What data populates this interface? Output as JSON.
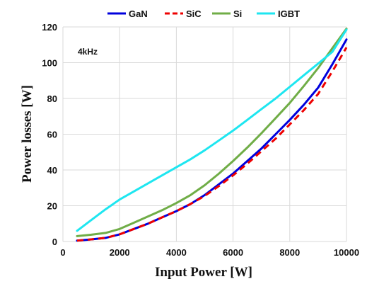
{
  "chart_data": {
    "type": "line",
    "title": "",
    "xlabel": "Input Power [W]",
    "ylabel": "Power losses [W]",
    "xlim": [
      0,
      10000
    ],
    "ylim": [
      0,
      120
    ],
    "x_ticks": [
      "0",
      "2000",
      "4000",
      "6000",
      "8000",
      "10000"
    ],
    "y_ticks": [
      "0",
      "20",
      "40",
      "60",
      "80",
      "100",
      "120"
    ],
    "grid": true,
    "legend_position": "top",
    "annotation": "4kHz",
    "series": [
      {
        "name": "GaN",
        "color": "#0000dd",
        "dash": "solid",
        "x": [
          500,
          1000,
          1500,
          2000,
          2500,
          3000,
          3500,
          4000,
          4500,
          5000,
          5500,
          6000,
          6500,
          7000,
          7500,
          8000,
          8500,
          9000,
          9500,
          10000
        ],
        "y": [
          0.5,
          1.2,
          2,
          4,
          7,
          10,
          13.5,
          17,
          21,
          26,
          32,
          38,
          45,
          52,
          60,
          68,
          76.5,
          86,
          99,
          113
        ]
      },
      {
        "name": "SiC",
        "color": "#ee0000",
        "dash": "dashed",
        "x": [
          500,
          1000,
          1500,
          2000,
          2500,
          3000,
          3500,
          4000,
          4500,
          5000,
          5500,
          6000,
          6500,
          7000,
          7500,
          8000,
          8500,
          9000,
          9500,
          10000
        ],
        "y": [
          0.5,
          1.2,
          2,
          4,
          7,
          10,
          13.5,
          17,
          21,
          25.5,
          31,
          37,
          43.5,
          50.5,
          57.5,
          65.5,
          73.5,
          82.5,
          95,
          108.5
        ]
      },
      {
        "name": "Si",
        "color": "#70ad47",
        "dash": "solid",
        "x": [
          500,
          1000,
          1500,
          2000,
          2500,
          3000,
          3500,
          4000,
          4500,
          5000,
          5500,
          6000,
          6500,
          7000,
          7500,
          8000,
          8500,
          9000,
          9500,
          10000
        ],
        "y": [
          3,
          3.8,
          4.8,
          7,
          10.5,
          14,
          17.5,
          21.5,
          26,
          31.5,
          38,
          45,
          52.5,
          60.5,
          69,
          77.5,
          87,
          97,
          108,
          119
        ]
      },
      {
        "name": "IGBT",
        "color": "#1ee6f0",
        "dash": "solid",
        "x": [
          500,
          1000,
          1500,
          2000,
          2500,
          3000,
          3500,
          4000,
          4500,
          5000,
          5500,
          6000,
          6500,
          7000,
          7500,
          8000,
          8500,
          9000,
          9500,
          10000
        ],
        "y": [
          6,
          12,
          18,
          23.5,
          28,
          32.5,
          37,
          41.5,
          46,
          51,
          56.5,
          62,
          68,
          74,
          80,
          86.5,
          93,
          99.5,
          106,
          118.5
        ]
      }
    ]
  }
}
